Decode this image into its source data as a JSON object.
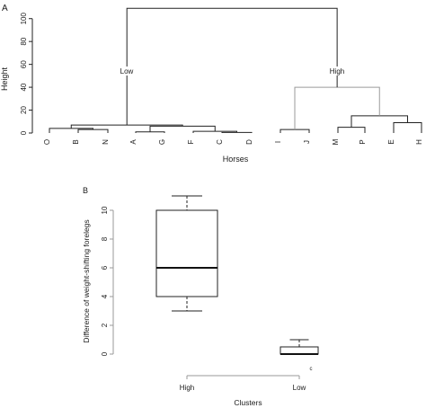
{
  "chart_data": [
    {
      "type": "dendrogram",
      "panel_label": "A",
      "xlabel": "Horses",
      "ylabel": "Height",
      "ylim": [
        0,
        110
      ],
      "yticks": [
        0,
        20,
        40,
        60,
        80,
        100
      ],
      "leaves": [
        "O",
        "B",
        "N",
        "A",
        "G",
        "F",
        "C",
        "D",
        "I",
        "J",
        "M",
        "P",
        "E",
        "H"
      ],
      "merges": [
        {
          "a": "B",
          "b": "N",
          "height": 3
        },
        {
          "a": "O",
          "b": "BN",
          "height": 4
        },
        {
          "a": "C",
          "b": "D",
          "height": 0.5
        },
        {
          "a": "F",
          "b": "CD",
          "height": 1.5
        },
        {
          "a": "A",
          "b": "G",
          "height": 1
        },
        {
          "a": "AG",
          "b": "FCD",
          "height": 6
        },
        {
          "a": "OBN",
          "b": "AGFCD",
          "height": 7
        },
        {
          "a": "I",
          "b": "J",
          "height": 3
        },
        {
          "a": "M",
          "b": "P",
          "height": 5
        },
        {
          "a": "E",
          "b": "H",
          "height": 9
        },
        {
          "a": "MP",
          "b": "EH",
          "height": 15
        },
        {
          "a": "IJ",
          "b": "MPEH",
          "height": 40
        },
        {
          "a": "Low",
          "b": "High",
          "height": 109
        }
      ],
      "cluster_labels": [
        "Low",
        "High"
      ]
    },
    {
      "type": "boxplot",
      "panel_label": "B",
      "xlabel": "Clusters",
      "ylabel": "Difference of weight-shifting forelegs",
      "ylim": [
        0,
        11
      ],
      "yticks": [
        0,
        2,
        4,
        6,
        8,
        10
      ],
      "categories": [
        "High",
        "Low"
      ],
      "boxes": [
        {
          "name": "High",
          "min": 3,
          "q1": 4,
          "median": 6,
          "q3": 10,
          "max": 11
        },
        {
          "name": "Low",
          "min": 0,
          "q1": 0,
          "median": 0,
          "q3": 0.5,
          "max": 1
        }
      ],
      "annotation": "c"
    }
  ],
  "colors": {
    "ink": "#222222",
    "axis_light": "#9a9a9a"
  }
}
